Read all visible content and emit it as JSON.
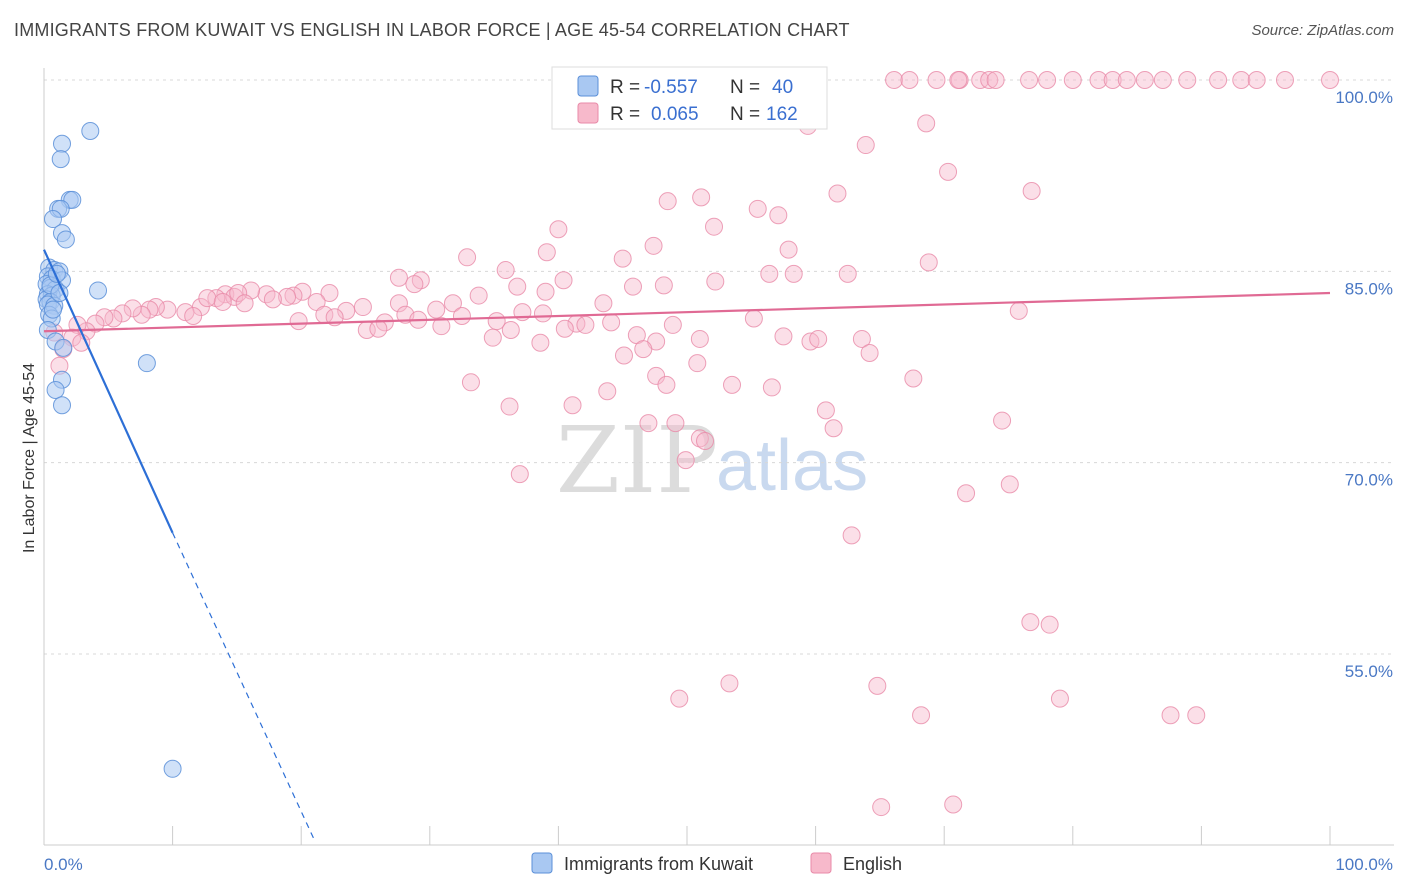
{
  "title": "IMMIGRANTS FROM KUWAIT VS ENGLISH IN LABOR FORCE | AGE 45-54 CORRELATION CHART",
  "source": "Source: ZipAtlas.com",
  "colors": {
    "kuwait_fill": "#a9c8f2",
    "kuwait_stroke": "#5b8fd8",
    "kuwait_line": "#2d6fd6",
    "english_fill": "#f7b9cb",
    "english_stroke": "#e88aa8",
    "english_line": "#e06a94",
    "tick_label": "#4a78c4",
    "grid": "#d8d8d8"
  },
  "legend": {
    "r_label": "R =",
    "n_label": "N =",
    "rows": [
      {
        "r": "-0.557",
        "n": "40"
      },
      {
        "r": "0.065",
        "n": "162"
      }
    ]
  },
  "watermark": {
    "zip": "ZIP",
    "atlas": "atlas"
  },
  "chart_data": {
    "type": "scatter",
    "title": "IMMIGRANTS FROM KUWAIT VS ENGLISH IN LABOR FORCE | AGE 45-54 CORRELATION CHART",
    "xlabel": "",
    "ylabel": "In Labor Force | Age 45-54",
    "x_tick_labels": [
      "0.0%",
      "100.0%"
    ],
    "y_tick_labels": [
      "55.0%",
      "70.0%",
      "85.0%",
      "100.0%"
    ],
    "y_ticks": [
      55,
      70,
      85,
      100
    ],
    "xlim": [
      0,
      100
    ],
    "ylim": [
      42,
      100
    ],
    "grid": true,
    "legend_position": "bottom",
    "series": [
      {
        "name": "Immigrants from Kuwait",
        "trend": {
          "x0": 0,
          "y0": 86.7,
          "x1": 10,
          "y1": 64.5,
          "dashed_to_x": 21,
          "dashed_to_y": 40
        },
        "points": [
          [
            3.6,
            96.0
          ],
          [
            1.4,
            95.0
          ],
          [
            1.3,
            93.8
          ],
          [
            2.0,
            90.6
          ],
          [
            2.2,
            90.6
          ],
          [
            1.1,
            89.9
          ],
          [
            1.3,
            89.9
          ],
          [
            0.7,
            89.1
          ],
          [
            1.4,
            88.0
          ],
          [
            1.7,
            87.5
          ],
          [
            0.4,
            85.3
          ],
          [
            0.8,
            85.1
          ],
          [
            1.2,
            85.0
          ],
          [
            0.3,
            84.6
          ],
          [
            0.6,
            84.4
          ],
          [
            1.4,
            84.3
          ],
          [
            0.2,
            84.0
          ],
          [
            0.5,
            83.7
          ],
          [
            0.9,
            83.6
          ],
          [
            4.2,
            83.5
          ],
          [
            0.3,
            83.2
          ],
          [
            0.6,
            83.1
          ],
          [
            0.2,
            82.8
          ],
          [
            0.5,
            82.6
          ],
          [
            0.3,
            82.4
          ],
          [
            0.8,
            82.3
          ],
          [
            0.4,
            81.6
          ],
          [
            0.6,
            81.3
          ],
          [
            0.3,
            80.4
          ],
          [
            0.9,
            79.5
          ],
          [
            1.5,
            79.0
          ],
          [
            8.0,
            77.8
          ],
          [
            1.4,
            76.5
          ],
          [
            0.9,
            75.7
          ],
          [
            1.4,
            74.5
          ],
          [
            10.0,
            46.0
          ],
          [
            0.5,
            83.9
          ],
          [
            1.0,
            84.8
          ],
          [
            0.7,
            82.0
          ],
          [
            1.2,
            83.3
          ]
        ]
      },
      {
        "name": "English",
        "trend": {
          "x0": 0,
          "y0": 80.3,
          "x1": 100,
          "y1": 83.3
        },
        "points": [
          [
            66.1,
            100
          ],
          [
            67.3,
            100
          ],
          [
            69.4,
            100
          ],
          [
            71.2,
            100
          ],
          [
            72.8,
            100
          ],
          [
            73.5,
            100
          ],
          [
            74.0,
            100
          ],
          [
            76.6,
            100
          ],
          [
            78.0,
            100
          ],
          [
            80.0,
            100
          ],
          [
            82.0,
            100
          ],
          [
            83.1,
            100
          ],
          [
            84.2,
            100
          ],
          [
            85.6,
            100
          ],
          [
            87.0,
            100
          ],
          [
            88.9,
            100
          ],
          [
            91.3,
            100
          ],
          [
            93.1,
            100
          ],
          [
            94.3,
            100
          ],
          [
            96.5,
            100
          ],
          [
            100,
            100
          ],
          [
            71.1,
            100
          ],
          [
            59.4,
            96.4
          ],
          [
            68.6,
            96.6
          ],
          [
            63.9,
            94.9
          ],
          [
            70.3,
            92.8
          ],
          [
            61.7,
            91.1
          ],
          [
            76.8,
            91.3
          ],
          [
            48.5,
            90.5
          ],
          [
            51.1,
            90.8
          ],
          [
            55.5,
            89.9
          ],
          [
            57.1,
            89.4
          ],
          [
            40.0,
            88.3
          ],
          [
            52.1,
            88.5
          ],
          [
            32.9,
            86.1
          ],
          [
            39.1,
            86.5
          ],
          [
            35.9,
            85.1
          ],
          [
            45.0,
            86.0
          ],
          [
            47.4,
            87.0
          ],
          [
            57.9,
            86.7
          ],
          [
            68.8,
            85.7
          ],
          [
            29.3,
            84.3
          ],
          [
            20.1,
            83.4
          ],
          [
            27.6,
            84.5
          ],
          [
            40.4,
            84.3
          ],
          [
            36.8,
            83.8
          ],
          [
            45.8,
            83.8
          ],
          [
            48.2,
            83.9
          ],
          [
            52.2,
            84.2
          ],
          [
            56.4,
            84.8
          ],
          [
            58.3,
            84.8
          ],
          [
            62.5,
            84.8
          ],
          [
            14.1,
            83.2
          ],
          [
            17.3,
            83.2
          ],
          [
            22.2,
            83.3
          ],
          [
            28.8,
            84.0
          ],
          [
            39.0,
            83.4
          ],
          [
            14.8,
            83.0
          ],
          [
            16.1,
            83.5
          ],
          [
            13.4,
            82.9
          ],
          [
            19.4,
            83.1
          ],
          [
            18.9,
            83.0
          ],
          [
            15.1,
            83.3
          ],
          [
            12.2,
            82.2
          ],
          [
            11.0,
            81.8
          ],
          [
            9.6,
            82.0
          ],
          [
            8.7,
            82.2
          ],
          [
            8.2,
            82.0
          ],
          [
            7.6,
            81.6
          ],
          [
            6.9,
            82.1
          ],
          [
            6.1,
            81.7
          ],
          [
            5.4,
            81.3
          ],
          [
            4.7,
            81.4
          ],
          [
            4.0,
            80.9
          ],
          [
            3.3,
            80.3
          ],
          [
            2.6,
            80.8
          ],
          [
            12.7,
            82.9
          ],
          [
            13.9,
            82.6
          ],
          [
            15.6,
            82.5
          ],
          [
            17.8,
            82.8
          ],
          [
            21.2,
            82.6
          ],
          [
            23.5,
            81.9
          ],
          [
            24.8,
            82.2
          ],
          [
            26.5,
            81.0
          ],
          [
            27.6,
            82.5
          ],
          [
            28.1,
            81.6
          ],
          [
            30.5,
            82.0
          ],
          [
            31.8,
            82.5
          ],
          [
            32.5,
            81.5
          ],
          [
            33.8,
            83.1
          ],
          [
            35.2,
            81.1
          ],
          [
            37.2,
            81.8
          ],
          [
            38.8,
            81.7
          ],
          [
            41.4,
            80.9
          ],
          [
            43.5,
            82.5
          ],
          [
            44.1,
            81.0
          ],
          [
            46.1,
            80.0
          ],
          [
            47.6,
            79.5
          ],
          [
            48.9,
            80.8
          ],
          [
            51.0,
            79.7
          ],
          [
            55.2,
            81.3
          ],
          [
            57.5,
            79.9
          ],
          [
            59.6,
            79.5
          ],
          [
            60.2,
            79.7
          ],
          [
            63.6,
            79.7
          ],
          [
            19.8,
            81.1
          ],
          [
            21.8,
            81.6
          ],
          [
            22.6,
            81.4
          ],
          [
            25.1,
            80.4
          ],
          [
            26.0,
            80.5
          ],
          [
            29.1,
            81.2
          ],
          [
            30.9,
            80.7
          ],
          [
            34.9,
            79.8
          ],
          [
            36.3,
            80.4
          ],
          [
            38.6,
            79.4
          ],
          [
            40.5,
            80.5
          ],
          [
            42.1,
            80.8
          ],
          [
            45.1,
            78.4
          ],
          [
            46.6,
            78.9
          ],
          [
            47.6,
            76.8
          ],
          [
            48.4,
            76.1
          ],
          [
            50.8,
            77.8
          ],
          [
            53.5,
            76.1
          ],
          [
            56.6,
            75.9
          ],
          [
            64.2,
            78.6
          ],
          [
            67.6,
            76.6
          ],
          [
            33.2,
            76.3
          ],
          [
            36.2,
            74.4
          ],
          [
            41.1,
            74.5
          ],
          [
            43.8,
            75.6
          ],
          [
            47.0,
            73.1
          ],
          [
            49.1,
            73.1
          ],
          [
            51.0,
            71.9
          ],
          [
            51.4,
            71.7
          ],
          [
            60.8,
            74.1
          ],
          [
            61.4,
            72.7
          ],
          [
            74.5,
            73.3
          ],
          [
            37.0,
            69.1
          ],
          [
            49.9,
            70.2
          ],
          [
            71.7,
            67.6
          ],
          [
            75.1,
            68.3
          ],
          [
            62.8,
            64.3
          ],
          [
            76.7,
            57.5
          ],
          [
            78.2,
            57.3
          ],
          [
            49.4,
            51.5
          ],
          [
            53.3,
            52.7
          ],
          [
            64.8,
            52.5
          ],
          [
            79.0,
            51.5
          ],
          [
            68.2,
            50.2
          ],
          [
            87.6,
            50.2
          ],
          [
            89.6,
            50.2
          ],
          [
            65.1,
            43.0
          ],
          [
            70.7,
            43.2
          ],
          [
            2.2,
            79.8
          ],
          [
            1.2,
            77.6
          ],
          [
            0.8,
            80.2
          ],
          [
            2.9,
            79.4
          ],
          [
            1.5,
            78.9
          ],
          [
            75.8,
            81.9
          ],
          [
            11.6,
            81.5
          ]
        ]
      }
    ]
  },
  "bottom_legend": [
    {
      "label": "Immigrants from Kuwait"
    },
    {
      "label": "English"
    }
  ]
}
